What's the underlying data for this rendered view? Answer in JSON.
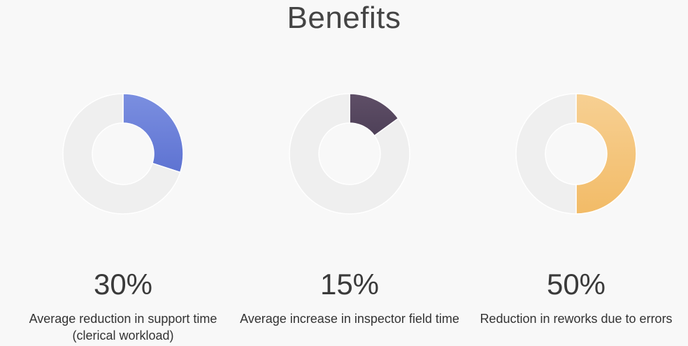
{
  "page": {
    "title": "Benefits"
  },
  "chart_data": [
    {
      "type": "pie",
      "variant": "donut",
      "values": [
        30,
        70
      ],
      "label": "30%",
      "description": "Average reduction in support time (clerical workload)",
      "colors": [
        "#6b80d8",
        "#efefef"
      ]
    },
    {
      "type": "pie",
      "variant": "donut",
      "values": [
        15,
        85
      ],
      "label": "15%",
      "description": "Average increase in inspector field time",
      "colors": [
        "#5a4a62",
        "#efefef"
      ]
    },
    {
      "type": "pie",
      "variant": "donut",
      "values": [
        50,
        50
      ],
      "label": "50%",
      "description": "Reduction in reworks due to errors",
      "colors": [
        "#f4c278",
        "#efefef"
      ]
    }
  ]
}
